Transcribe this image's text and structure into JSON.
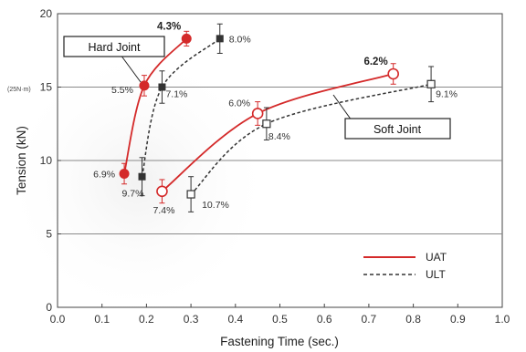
{
  "chart_data": {
    "type": "scatter",
    "xlabel": "Fastening Time (sec.)",
    "ylabel": "Tension (kN)",
    "ylabel_sub": "(25N·m)",
    "xlim": [
      0.0,
      1.0
    ],
    "ylim": [
      0,
      20
    ],
    "xticks": [
      "0.0",
      "0.1",
      "0.2",
      "0.3",
      "0.4",
      "0.5",
      "0.6",
      "0.7",
      "0.8",
      "0.9",
      "1.0"
    ],
    "yticks": [
      "0",
      "5",
      "10",
      "15",
      "20"
    ],
    "grid": "horizontal",
    "legend_position": "bottom-right",
    "annotations": [
      "Hard Joint",
      "Soft Joint"
    ],
    "series": [
      {
        "name": "UAT",
        "line": "solid",
        "color": "#d42a2a",
        "groups": [
          {
            "joint": "Hard Joint",
            "marker": "filled-circle",
            "points": [
              {
                "x": 0.15,
                "y": 9.1,
                "err": 0.7,
                "label": "6.9%"
              },
              {
                "x": 0.195,
                "y": 15.1,
                "err": 0.7,
                "label": "5.5%"
              },
              {
                "x": 0.29,
                "y": 18.3,
                "err": 0.5,
                "label": "4.3%"
              }
            ]
          },
          {
            "joint": "Soft Joint",
            "marker": "open-circle",
            "points": [
              {
                "x": 0.235,
                "y": 7.9,
                "err": 0.8,
                "label": "7.4%"
              },
              {
                "x": 0.45,
                "y": 13.2,
                "err": 0.8,
                "label": "6.0%"
              },
              {
                "x": 0.755,
                "y": 15.9,
                "err": 0.7,
                "label": "6.2%"
              }
            ]
          }
        ]
      },
      {
        "name": "ULT",
        "line": "dashed",
        "color": "#333333",
        "groups": [
          {
            "joint": "Hard Joint",
            "marker": "filled-square",
            "points": [
              {
                "x": 0.19,
                "y": 8.9,
                "err": 1.3,
                "label": "9.7%"
              },
              {
                "x": 0.235,
                "y": 15.0,
                "err": 1.1,
                "label": "7.1%"
              },
              {
                "x": 0.365,
                "y": 18.3,
                "err": 1.0,
                "label": "8.0%"
              }
            ]
          },
          {
            "joint": "Soft Joint",
            "marker": "open-square",
            "points": [
              {
                "x": 0.3,
                "y": 7.7,
                "err": 1.2,
                "label": "10.7%"
              },
              {
                "x": 0.47,
                "y": 12.5,
                "err": 1.1,
                "label": "8.4%"
              },
              {
                "x": 0.84,
                "y": 15.2,
                "err": 1.2,
                "label": "9.1%"
              }
            ]
          }
        ]
      }
    ]
  }
}
